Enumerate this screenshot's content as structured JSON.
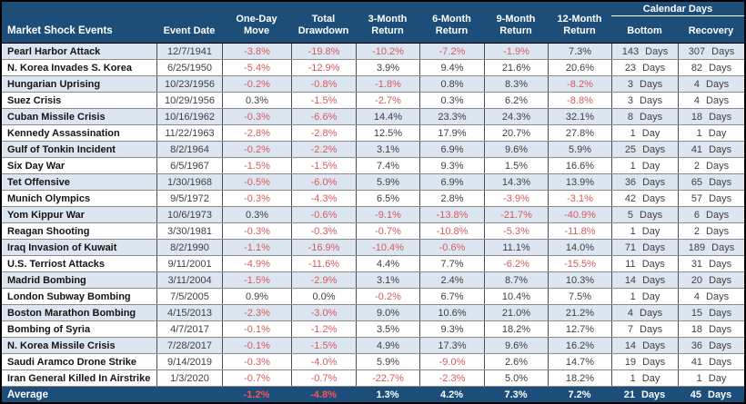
{
  "accent_colors": {
    "header_bg": "#1D4E79",
    "stripe_bg": "#DCE6F1",
    "negative_text": "#D65A5F",
    "negative_on_dark": "#FF5257",
    "header_text": "#FFFFFF"
  },
  "header": {
    "event_col": "Market Shock Events",
    "date_col": "Event Date",
    "cols": [
      {
        "l1": "One-Day",
        "l2": "Move"
      },
      {
        "l1": "Total",
        "l2": "Drawdown"
      },
      {
        "l1": "3-Month",
        "l2": "Return"
      },
      {
        "l1": "6-Month",
        "l2": "Return"
      },
      {
        "l1": "9-Month",
        "l2": "Return"
      },
      {
        "l1": "12-Month",
        "l2": "Return"
      }
    ],
    "calendar_group": "Calendar Days",
    "bottom_col": "Bottom",
    "recovery_col": "Recovery"
  },
  "chart_data": {
    "type": "table",
    "title": "Market Shock Events",
    "columns": [
      "Market Shock Events",
      "Event Date",
      "One-Day Move",
      "Total Drawdown",
      "3-Month Return",
      "6-Month Return",
      "9-Month Return",
      "12-Month Return",
      "Bottom (Calendar Days)",
      "Recovery (Calendar Days)"
    ],
    "rows": [
      {
        "event": "Pearl Harbor Attack",
        "date": "12/7/1941",
        "cells": [
          "-3.8%",
          "-19.8%",
          "-10.2%",
          "-7.2%",
          "-1.9%",
          "7.3%"
        ],
        "days": [
          "143 Days",
          "307 Days"
        ],
        "shaded": true
      },
      {
        "event": "N. Korea Invades S. Korea",
        "date": "6/25/1950",
        "cells": [
          "-5.4%",
          "-12.9%",
          "3.9%",
          "9.4%",
          "21.6%",
          "20.6%"
        ],
        "days": [
          "23 Days",
          "82 Days"
        ],
        "shaded": false
      },
      {
        "event": "Hungarian Uprising",
        "date": "10/23/1956",
        "cells": [
          "-0.2%",
          "-0.8%",
          "-1.8%",
          "0.8%",
          "8.3%",
          "-8.2%"
        ],
        "days": [
          "3 Days",
          "4 Days"
        ],
        "shaded": true
      },
      {
        "event": "Suez Crisis",
        "date": "10/29/1956",
        "cells": [
          "0.3%",
          "-1.5%",
          "-2.7%",
          "0.3%",
          "6.2%",
          "-8.8%"
        ],
        "days": [
          "3 Days",
          "4 Days"
        ],
        "shaded": false
      },
      {
        "event": "Cuban Missile Crisis",
        "date": "10/16/1962",
        "cells": [
          "-0.3%",
          "-6.6%",
          "14.4%",
          "23.3%",
          "24.3%",
          "32.1%"
        ],
        "days": [
          "8 Days",
          "18 Days"
        ],
        "shaded": true
      },
      {
        "event": "Kennedy Assassination",
        "date": "11/22/1963",
        "cells": [
          "-2.8%",
          "-2.8%",
          "12.5%",
          "17.9%",
          "20.7%",
          "27.8%"
        ],
        "days": [
          "1 Day",
          "1 Day"
        ],
        "shaded": false
      },
      {
        "event": "Gulf of Tonkin Incident",
        "date": "8/2/1964",
        "cells": [
          "-0.2%",
          "-2.2%",
          "3.1%",
          "6.9%",
          "9.6%",
          "5.9%"
        ],
        "days": [
          "25 Days",
          "41 Days"
        ],
        "shaded": true
      },
      {
        "event": "Six Day War",
        "date": "6/5/1967",
        "cells": [
          "-1.5%",
          "-1.5%",
          "7.4%",
          "9.3%",
          "1.5%",
          "16.6%"
        ],
        "days": [
          "1 Day",
          "2 Days"
        ],
        "shaded": false
      },
      {
        "event": "Tet Offensive",
        "date": "1/30/1968",
        "cells": [
          "-0.5%",
          "-6.0%",
          "5.9%",
          "6.9%",
          "14.3%",
          "13.9%"
        ],
        "days": [
          "36 Days",
          "65 Days"
        ],
        "shaded": true
      },
      {
        "event": "Munich Olympics",
        "date": "9/5/1972",
        "cells": [
          "-0.3%",
          "-4.3%",
          "6.5%",
          "2.8%",
          "-3.9%",
          "-3.1%"
        ],
        "days": [
          "42 Days",
          "57 Days"
        ],
        "shaded": false
      },
      {
        "event": "Yom Kippur War",
        "date": "10/6/1973",
        "cells": [
          "0.3%",
          "-0.6%",
          "-9.1%",
          "-13.8%",
          "-21.7%",
          "-40.9%"
        ],
        "days": [
          "5 Days",
          "6 Days"
        ],
        "shaded": true
      },
      {
        "event": "Reagan Shooting",
        "date": "3/30/1981",
        "cells": [
          "-0.3%",
          "-0.3%",
          "-0.7%",
          "-10.8%",
          "-5.3%",
          "-11.8%"
        ],
        "days": [
          "1 Day",
          "2 Days"
        ],
        "shaded": false
      },
      {
        "event": "Iraq Invasion of Kuwait",
        "date": "8/2/1990",
        "cells": [
          "-1.1%",
          "-16.9%",
          "-10.4%",
          "-0.6%",
          "11.1%",
          "14.0%"
        ],
        "days": [
          "71 Days",
          "189 Days"
        ],
        "shaded": true
      },
      {
        "event": "U.S. Terriost Attacks",
        "date": "9/11/2001",
        "cells": [
          "-4.9%",
          "-11.6%",
          "4.4%",
          "7.7%",
          "-6.2%",
          "-15.5%"
        ],
        "days": [
          "11 Days",
          "31 Days"
        ],
        "shaded": false
      },
      {
        "event": "Madrid Bombing",
        "date": "3/11/2004",
        "cells": [
          "-1.5%",
          "-2.9%",
          "3.1%",
          "2.4%",
          "8.7%",
          "10.3%"
        ],
        "days": [
          "14 Days",
          "20 Days"
        ],
        "shaded": true
      },
      {
        "event": "London Subway Bombing",
        "date": "7/5/2005",
        "cells": [
          "0.9%",
          "0.0%",
          "-0.2%",
          "6.7%",
          "10.4%",
          "7.5%"
        ],
        "days": [
          "1 Day",
          "4 Days"
        ],
        "shaded": false
      },
      {
        "event": "Boston Marathon Bombing",
        "date": "4/15/2013",
        "cells": [
          "-2.3%",
          "-3.0%",
          "9.0%",
          "10.6%",
          "21.0%",
          "21.2%"
        ],
        "days": [
          "4 Days",
          "15 Days"
        ],
        "shaded": true
      },
      {
        "event": "Bombing of Syria",
        "date": "4/7/2017",
        "cells": [
          "-0.1%",
          "-1.2%",
          "3.5%",
          "9.3%",
          "18.2%",
          "12.7%"
        ],
        "days": [
          "7 Days",
          "18 Days"
        ],
        "shaded": false
      },
      {
        "event": "N. Korea Missile Crisis",
        "date": "7/28/2017",
        "cells": [
          "-0.1%",
          "-1.5%",
          "4.9%",
          "17.3%",
          "9.6%",
          "16.2%"
        ],
        "days": [
          "14 Days",
          "36 Days"
        ],
        "shaded": true
      },
      {
        "event": "Saudi Aramco Drone Strike",
        "date": "9/14/2019",
        "cells": [
          "-0.3%",
          "-4.0%",
          "5.9%",
          "-9.0%",
          "2.6%",
          "14.7%"
        ],
        "days": [
          "19 Days",
          "41 Days"
        ],
        "shaded": false
      },
      {
        "event": "Iran General Killed In Airstrike",
        "date": "1/3/2020",
        "cells": [
          "-0.7%",
          "-0.7%",
          "-22.7%",
          "-2.3%",
          "5.0%",
          "18.2%"
        ],
        "days": [
          "1 Day",
          "1 Day"
        ],
        "shaded": false
      }
    ],
    "average": {
      "label": "Average",
      "cells": [
        "-1.2%",
        "-4.8%",
        "1.3%",
        "4.2%",
        "7.3%",
        "7.2%"
      ],
      "days": [
        "21 Days",
        "45 Days"
      ]
    }
  }
}
